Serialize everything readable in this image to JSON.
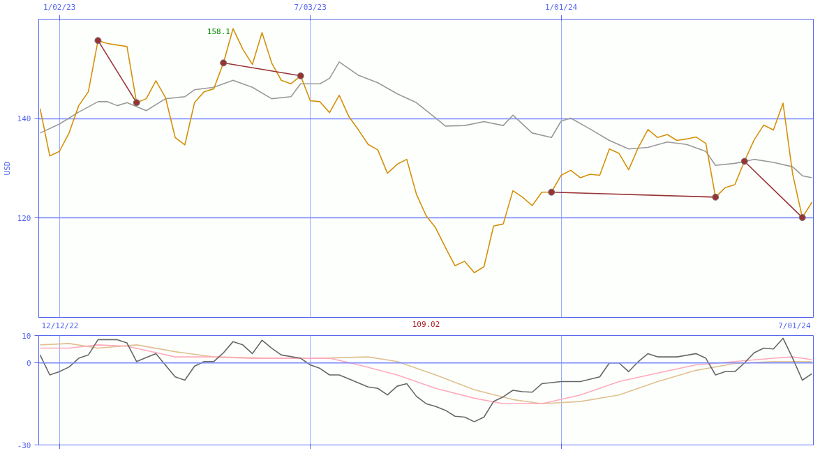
{
  "chart_data": [
    {
      "type": "line",
      "ylabel": "USD",
      "xlim": [
        "2022-12-18",
        "2024-07-02"
      ],
      "ylim": [
        100,
        160
      ],
      "yticks": [
        120,
        140
      ],
      "grid": true,
      "xticks": [
        {
          "value": "2023-01-02",
          "label": "1/02/23"
        },
        {
          "value": "2023-07-03",
          "label": "7/03/23"
        },
        {
          "value": "2024-01-01",
          "label": "1/01/24"
        }
      ],
      "x": [
        "2022-12-19",
        "2022-12-26",
        "2023-01-02",
        "2023-01-09",
        "2023-01-16",
        "2023-01-23",
        "2023-01-30",
        "2023-02-06",
        "2023-02-13",
        "2023-02-20",
        "2023-02-27",
        "2023-03-06",
        "2023-03-13",
        "2023-03-20",
        "2023-03-27",
        "2023-04-03",
        "2023-04-10",
        "2023-04-17",
        "2023-04-24",
        "2023-05-01",
        "2023-05-08",
        "2023-05-15",
        "2023-05-22",
        "2023-05-29",
        "2023-06-05",
        "2023-06-12",
        "2023-06-19",
        "2023-06-26",
        "2023-07-03",
        "2023-07-10",
        "2023-07-17",
        "2023-07-24",
        "2023-07-31",
        "2023-08-07",
        "2023-08-14",
        "2023-08-21",
        "2023-08-28",
        "2023-09-04",
        "2023-09-11",
        "2023-09-18",
        "2023-09-25",
        "2023-10-02",
        "2023-10-09",
        "2023-10-16",
        "2023-10-23",
        "2023-10-30",
        "2023-11-06",
        "2023-11-13",
        "2023-11-20",
        "2023-11-27",
        "2023-12-04",
        "2023-12-11",
        "2023-12-18",
        "2023-12-25",
        "2024-01-01",
        "2024-01-08",
        "2024-01-15",
        "2024-01-22",
        "2024-01-29",
        "2024-02-05",
        "2024-02-12",
        "2024-02-19",
        "2024-02-26",
        "2024-03-04",
        "2024-03-11",
        "2024-03-18",
        "2024-03-25",
        "2024-04-01",
        "2024-04-08",
        "2024-04-15",
        "2024-04-22",
        "2024-04-29",
        "2024-05-06",
        "2024-05-13",
        "2024-05-20",
        "2024-05-27",
        "2024-06-03",
        "2024-06-10",
        "2024-06-17",
        "2024-06-24",
        "2024-07-01"
      ],
      "series": [
        {
          "color": "#999999",
          "x": [
            "2022-12-19",
            "2023-01-02",
            "2023-01-16",
            "2023-01-30",
            "2023-02-06",
            "2023-02-13",
            "2023-02-20",
            "2023-03-06",
            "2023-03-20",
            "2023-04-03",
            "2023-04-10",
            "2023-04-24",
            "2023-05-08",
            "2023-05-22",
            "2023-06-05",
            "2023-06-19",
            "2023-06-26",
            "2023-07-10",
            "2023-07-17",
            "2023-07-24",
            "2023-08-07",
            "2023-08-21",
            "2023-09-04",
            "2023-09-18",
            "2023-10-02",
            "2023-10-09",
            "2023-10-23",
            "2023-11-06",
            "2023-11-20",
            "2023-11-27",
            "2023-12-11",
            "2023-12-25",
            "2024-01-01",
            "2024-01-08",
            "2024-01-22",
            "2024-02-05",
            "2024-02-19",
            "2024-03-04",
            "2024-03-18",
            "2024-04-01",
            "2024-04-15",
            "2024-04-22",
            "2024-05-06",
            "2024-05-20",
            "2024-06-03",
            "2024-06-17",
            "2024-06-24",
            "2024-07-01"
          ],
          "values": [
            137.1,
            138.9,
            141.3,
            143.4,
            143.4,
            142.6,
            143.2,
            141.6,
            144.0,
            144.4,
            145.8,
            146.3,
            147.7,
            146.3,
            144.0,
            144.4,
            147.0,
            147.0,
            148.1,
            151.4,
            148.7,
            147.2,
            145.0,
            143.2,
            140.1,
            138.5,
            138.6,
            139.4,
            138.6,
            140.7,
            137.1,
            136.2,
            139.5,
            140.1,
            137.9,
            135.6,
            133.9,
            134.2,
            135.3,
            134.8,
            133.4,
            130.6,
            131.0,
            131.8,
            131.2,
            130.3,
            128.5,
            128.1
          ]
        },
        {
          "color": "#d4900a",
          "values": [
            142.0,
            132.5,
            133.4,
            137.1,
            142.6,
            145.4,
            155.7,
            155.1,
            154.8,
            154.5,
            143.2,
            144.0,
            147.6,
            144.2,
            136.2,
            134.7,
            143.2,
            145.4,
            146.0,
            151.2,
            158.1,
            154.0,
            150.9,
            157.3,
            151.2,
            147.7,
            147.0,
            148.6,
            143.6,
            143.4,
            141.2,
            144.7,
            140.4,
            137.7,
            134.8,
            133.7,
            129.0,
            130.8,
            131.8,
            124.8,
            120.5,
            118.0,
            114.1,
            110.4,
            111.3,
            109.0,
            110.2,
            118.4,
            118.8,
            125.5,
            124.2,
            122.5,
            125.2,
            125.2,
            128.6,
            129.6,
            128.1,
            128.8,
            128.6,
            133.9,
            133.0,
            129.7,
            134.2,
            137.8,
            136.2,
            136.8,
            135.6,
            135.9,
            136.3,
            135.0,
            124.2,
            126.1,
            126.7,
            131.4,
            135.7,
            138.7,
            137.7,
            143.1,
            128.8,
            120.1,
            123.2
          ]
        },
        {
          "color": "#993333",
          "marker": "circle",
          "x": [
            "2023-01-30",
            "2023-02-27"
          ],
          "values": [
            155.7,
            143.2
          ]
        },
        {
          "color": "#993333",
          "marker": "circle",
          "x": [
            "2023-05-01",
            "2023-06-26"
          ],
          "values": [
            151.2,
            148.6
          ]
        },
        {
          "color": "#993333",
          "marker": "circle",
          "x": [
            "2023-12-25",
            "2024-04-22"
          ],
          "values": [
            125.2,
            124.2
          ]
        },
        {
          "color": "#993333",
          "marker": "circle",
          "x": [
            "2024-05-13",
            "2024-06-24"
          ],
          "values": [
            131.4,
            120.1
          ]
        }
      ],
      "annotations": [
        {
          "text": "158.1",
          "x": "2023-05-08",
          "y": 158.1
        }
      ]
    },
    {
      "type": "line",
      "xlim": [
        "2022-12-18",
        "2024-07-02"
      ],
      "ylim": [
        -30,
        10
      ],
      "yticks": [
        -30,
        0,
        10
      ],
      "grid": "x",
      "tick_labels": "y",
      "ref_lines": [
        {
          "axis": "y",
          "value": 0,
          "color": "#7788ff"
        }
      ],
      "xticks": [
        {
          "value": "2023-01-02",
          "label": null
        },
        {
          "value": "2023-07-03",
          "label": null
        },
        {
          "value": "2024-01-01",
          "label": null
        }
      ],
      "series": [
        {
          "color": "#e0c090",
          "x": [
            "2022-12-19",
            "2023-01-09",
            "2023-01-30",
            "2023-02-27",
            "2023-03-27",
            "2023-04-24",
            "2023-06-05",
            "2023-07-10",
            "2023-08-14",
            "2023-09-04",
            "2023-10-02",
            "2023-10-30",
            "2023-11-27",
            "2023-12-18",
            "2024-01-15",
            "2024-02-12",
            "2024-03-11",
            "2024-04-08",
            "2024-05-06",
            "2024-06-03",
            "2024-07-01"
          ],
          "values": [
            6.6,
            7.1,
            5.4,
            6.6,
            4.1,
            2.2,
            1.7,
            1.7,
            2.2,
            0.5,
            -4.4,
            -9.8,
            -13.4,
            -14.9,
            -14.1,
            -11.7,
            -6.8,
            -2.7,
            -0.2,
            0.5,
            0.5
          ]
        },
        {
          "color": "#ffaabb",
          "x": [
            "2022-12-19",
            "2023-01-09",
            "2023-01-30",
            "2023-02-20",
            "2023-03-27",
            "2023-04-24",
            "2023-05-22",
            "2023-06-26",
            "2023-07-17",
            "2023-08-07",
            "2023-09-04",
            "2023-10-02",
            "2023-10-30",
            "2023-11-20",
            "2023-12-18",
            "2024-01-15",
            "2024-02-12",
            "2024-03-11",
            "2024-04-08",
            "2024-05-06",
            "2024-06-03",
            "2024-06-17",
            "2024-07-01"
          ],
          "values": [
            5.4,
            5.4,
            6.6,
            6.1,
            2.2,
            2.2,
            1.7,
            1.7,
            1.7,
            -0.7,
            -4.4,
            -9.3,
            -12.9,
            -14.9,
            -14.9,
            -11.7,
            -6.8,
            -3.7,
            -0.7,
            0.5,
            1.7,
            2.2,
            1.2
          ]
        },
        {
          "color": "#666666",
          "x": [
            "2022-12-19",
            "2022-12-26",
            "2023-01-02",
            "2023-01-09",
            "2023-01-16",
            "2023-01-23",
            "2023-01-30",
            "2023-02-13",
            "2023-02-20",
            "2023-02-27",
            "2023-03-06",
            "2023-03-13",
            "2023-03-27",
            "2023-04-03",
            "2023-04-10",
            "2023-04-17",
            "2023-04-24",
            "2023-05-01",
            "2023-05-08",
            "2023-05-15",
            "2023-05-22",
            "2023-05-29",
            "2023-06-05",
            "2023-06-12",
            "2023-06-26",
            "2023-07-03",
            "2023-07-10",
            "2023-07-17",
            "2023-07-24",
            "2023-08-07",
            "2023-08-14",
            "2023-08-21",
            "2023-08-28",
            "2023-09-04",
            "2023-09-11",
            "2023-09-18",
            "2023-09-25",
            "2023-10-02",
            "2023-10-09",
            "2023-10-16",
            "2023-10-23",
            "2023-10-30",
            "2023-11-06",
            "2023-11-13",
            "2023-11-20",
            "2023-11-27",
            "2023-12-04",
            "2023-12-11",
            "2023-12-18",
            "2024-01-01",
            "2024-01-15",
            "2024-01-29",
            "2024-02-05",
            "2024-02-12",
            "2024-02-19",
            "2024-02-26",
            "2024-03-04",
            "2024-03-11",
            "2024-03-25",
            "2024-04-08",
            "2024-04-15",
            "2024-04-22",
            "2024-04-29",
            "2024-05-06",
            "2024-05-13",
            "2024-05-20",
            "2024-05-27",
            "2024-06-03",
            "2024-06-10",
            "2024-06-17",
            "2024-06-24",
            "2024-07-01"
          ],
          "values": [
            2.9,
            -4.4,
            -3.2,
            -1.5,
            1.7,
            2.9,
            8.5,
            8.5,
            7.3,
            0.5,
            2.0,
            3.4,
            -5.1,
            -6.3,
            -1.2,
            0.5,
            0.5,
            3.7,
            7.8,
            6.6,
            3.4,
            8.3,
            5.4,
            2.9,
            1.7,
            -0.7,
            -2.0,
            -4.4,
            -4.4,
            -7.3,
            -8.8,
            -9.3,
            -11.7,
            -8.5,
            -7.6,
            -12.2,
            -14.9,
            -15.9,
            -17.3,
            -19.5,
            -19.8,
            -21.5,
            -19.8,
            -14.1,
            -12.4,
            -10.0,
            -10.5,
            -10.7,
            -7.6,
            -6.8,
            -6.8,
            -5.1,
            0,
            0,
            -3.2,
            0.5,
            3.4,
            2.2,
            2.2,
            3.4,
            1.7,
            -4.4,
            -3.2,
            -3.2,
            0,
            3.7,
            5.4,
            5.1,
            9.0,
            1.7,
            -6.3,
            -3.9
          ]
        }
      ],
      "annotations": [
        "12/12/22",
        "109.02",
        "7/01/24"
      ]
    }
  ]
}
